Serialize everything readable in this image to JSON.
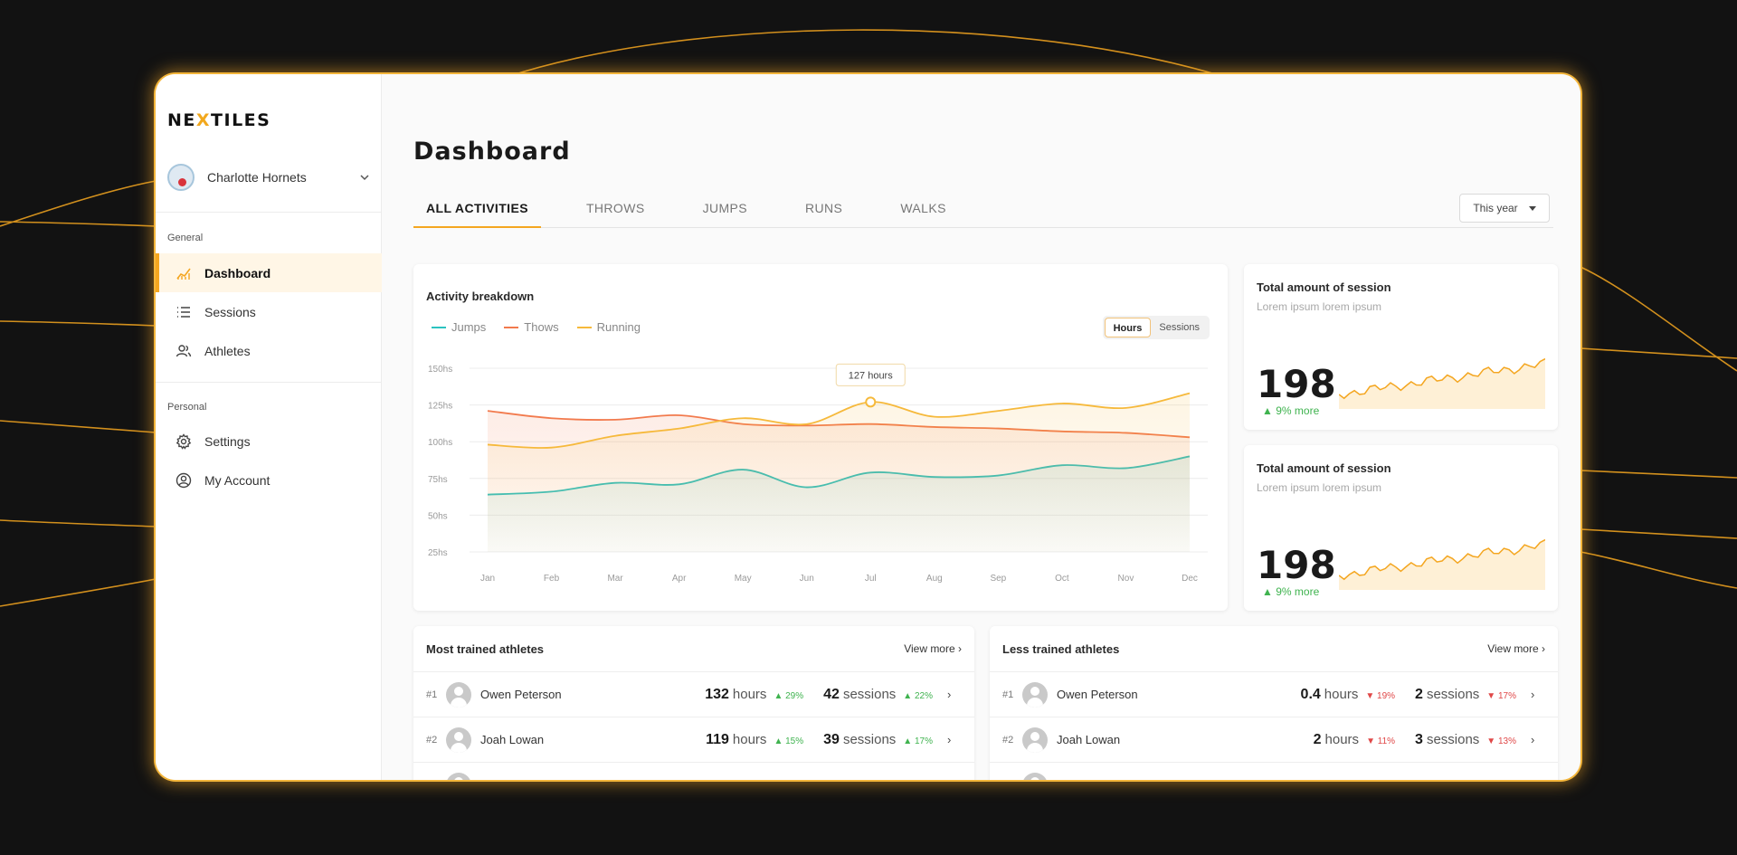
{
  "brand": {
    "logo_text_a": "NE",
    "logo_text_x": "X",
    "logo_text_b": "TILES",
    "accent": "#f4a620"
  },
  "team": {
    "name": "Charlotte Hornets"
  },
  "sidebar": {
    "general_label": "General",
    "personal_label": "Personal",
    "items": [
      {
        "label": "Dashboard",
        "icon": "chart-icon"
      },
      {
        "label": "Sessions",
        "icon": "list-icon"
      },
      {
        "label": "Athletes",
        "icon": "users-icon"
      },
      {
        "label": "Settings",
        "icon": "gear-icon"
      },
      {
        "label": "My Account",
        "icon": "user-circle-icon"
      }
    ]
  },
  "main": {
    "title": "Dashboard",
    "tabs": [
      "ALL ACTIVITIES",
      "THROWS",
      "JUMPS",
      "RUNS",
      "WALKS"
    ],
    "period": "This year"
  },
  "activity": {
    "title": "Activity breakdown",
    "legend": [
      "Jumps",
      "Thows",
      "Running"
    ],
    "toggle": [
      "Hours",
      "Sessions"
    ],
    "tooltip": "127 hours"
  },
  "chart_data": {
    "type": "line",
    "title": "Activity breakdown",
    "x": [
      "Jan",
      "Feb",
      "Mar",
      "Apr",
      "May",
      "Jun",
      "Jul",
      "Aug",
      "Sep",
      "Oct",
      "Nov",
      "Dec"
    ],
    "y_ticks": [
      "150hs",
      "125hs",
      "100hs",
      "75hs",
      "50hs",
      "25hs"
    ],
    "ylim": [
      25,
      150
    ],
    "grid": true,
    "legend_position": "top-left",
    "series": [
      {
        "name": "Jumps",
        "color": "#2bc3c0",
        "values": [
          64,
          66,
          72,
          71,
          81,
          69,
          79,
          76,
          77,
          84,
          82,
          90
        ]
      },
      {
        "name": "Thows",
        "color": "#f27a4d",
        "values": [
          121,
          116,
          115,
          118,
          112,
          111,
          112,
          110,
          109,
          107,
          106,
          103
        ]
      },
      {
        "name": "Running",
        "color": "#f6b93b",
        "values": [
          98,
          96,
          104,
          109,
          116,
          112,
          127,
          117,
          121,
          126,
          123,
          133
        ]
      }
    ]
  },
  "stats": [
    {
      "title": "Total amount of session",
      "subtitle": "Lorem ipsum lorem ipsum",
      "value": "198",
      "delta": "9% more"
    },
    {
      "title": "Total amount of session",
      "subtitle": "Lorem ipsum lorem ipsum",
      "value": "198",
      "delta": "9% more"
    }
  ],
  "most_trained": {
    "title": "Most trained athletes",
    "view_more": "View more",
    "rows": [
      {
        "rank": "#1",
        "name": "Owen Peterson",
        "hours": "132",
        "hours_unit": "hours",
        "hours_pct": "29%",
        "sessions": "42",
        "sessions_unit": "sessions",
        "sessions_pct": "22%"
      },
      {
        "rank": "#2",
        "name": "Joah Lowan",
        "hours": "119",
        "hours_unit": "hours",
        "hours_pct": "15%",
        "sessions": "39",
        "sessions_unit": "sessions",
        "sessions_pct": "17%"
      }
    ]
  },
  "less_trained": {
    "title": "Less trained athletes",
    "view_more": "View more",
    "rows": [
      {
        "rank": "#1",
        "name": "Owen Peterson",
        "hours": "0.4",
        "hours_unit": "hours",
        "hours_pct": "19%",
        "sessions": "2",
        "sessions_unit": "sessions",
        "sessions_pct": "17%"
      },
      {
        "rank": "#2",
        "name": "Joah Lowan",
        "hours": "2",
        "hours_unit": "hours",
        "hours_pct": "11%",
        "sessions": "3",
        "sessions_unit": "sessions",
        "sessions_pct": "13%"
      }
    ]
  }
}
